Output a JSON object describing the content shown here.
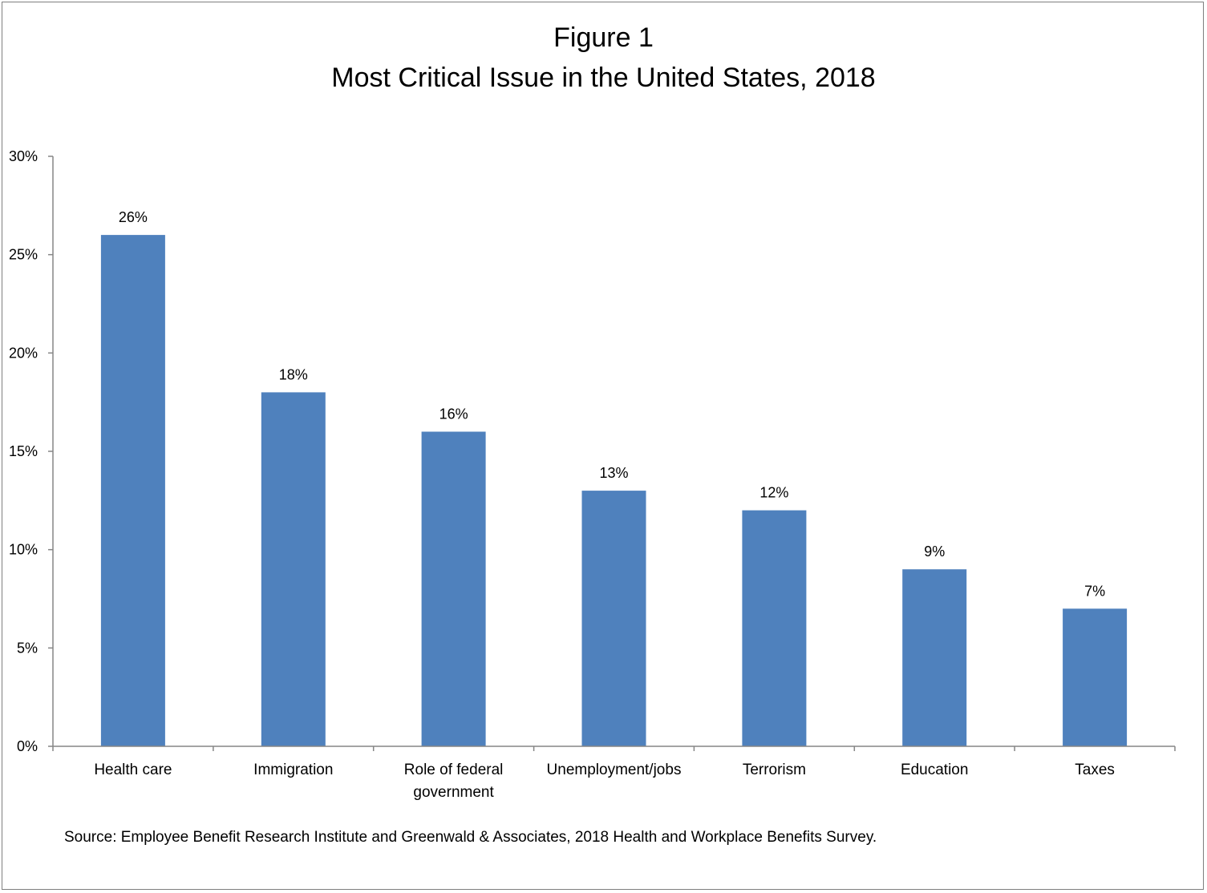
{
  "chart_data": {
    "type": "bar",
    "title": "Figure 1",
    "subtitle": "Most Critical Issue in the United States, 2018",
    "categories": [
      [
        "Health care"
      ],
      [
        "Immigration"
      ],
      [
        "Role of federal",
        "government"
      ],
      [
        "Unemployment/jobs"
      ],
      [
        "Terrorism"
      ],
      [
        "Education"
      ],
      [
        "Taxes"
      ]
    ],
    "values": [
      26,
      18,
      16,
      13,
      12,
      9,
      7
    ],
    "data_labels": [
      "26%",
      "18%",
      "16%",
      "13%",
      "12%",
      "9%",
      "7%"
    ],
    "y_ticks": [
      {
        "value": 0,
        "label": "0%"
      },
      {
        "value": 5,
        "label": "5%"
      },
      {
        "value": 10,
        "label": "10%"
      },
      {
        "value": 15,
        "label": "15%"
      },
      {
        "value": 20,
        "label": "20%"
      },
      {
        "value": 25,
        "label": "25%"
      },
      {
        "value": 30,
        "label": "30%"
      }
    ],
    "ylim": [
      0,
      30
    ],
    "xlabel": "",
    "ylabel": "",
    "grid": false,
    "legend": "none",
    "bar_color": "#4f81bd",
    "axis_color": "#868686"
  },
  "source": "Source: Employee Benefit Research Institute and Greenwald & Associates, 2018 Health and Workplace Benefits Survey."
}
